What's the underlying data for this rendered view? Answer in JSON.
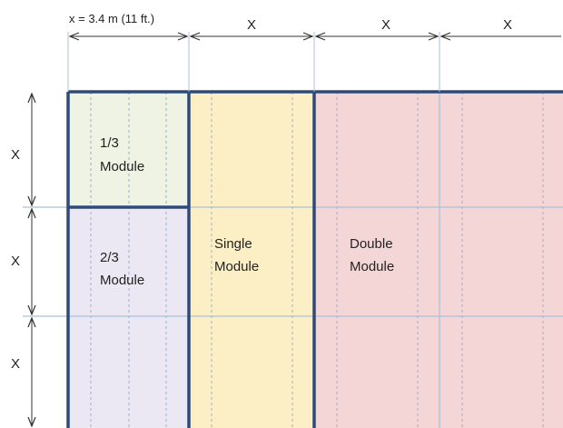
{
  "dimension_label": "x = 3.4 m (11 ft.)",
  "column_labels": [
    "X",
    "X",
    "X"
  ],
  "row_labels": [
    "X",
    "X",
    "X"
  ],
  "modules": {
    "third": [
      "1/3",
      "Module"
    ],
    "two_thirds": [
      "2/3",
      "Module"
    ],
    "single": [
      "Single",
      "Module"
    ],
    "double": [
      "Double",
      "Module"
    ]
  },
  "colors": {
    "third": "#eef3e3",
    "two_thirds": "#ece8f3",
    "single": "#fcefc6",
    "double": "#f4d6d6",
    "border": "#2d4a7a",
    "gridline": "#a9c0dc"
  }
}
